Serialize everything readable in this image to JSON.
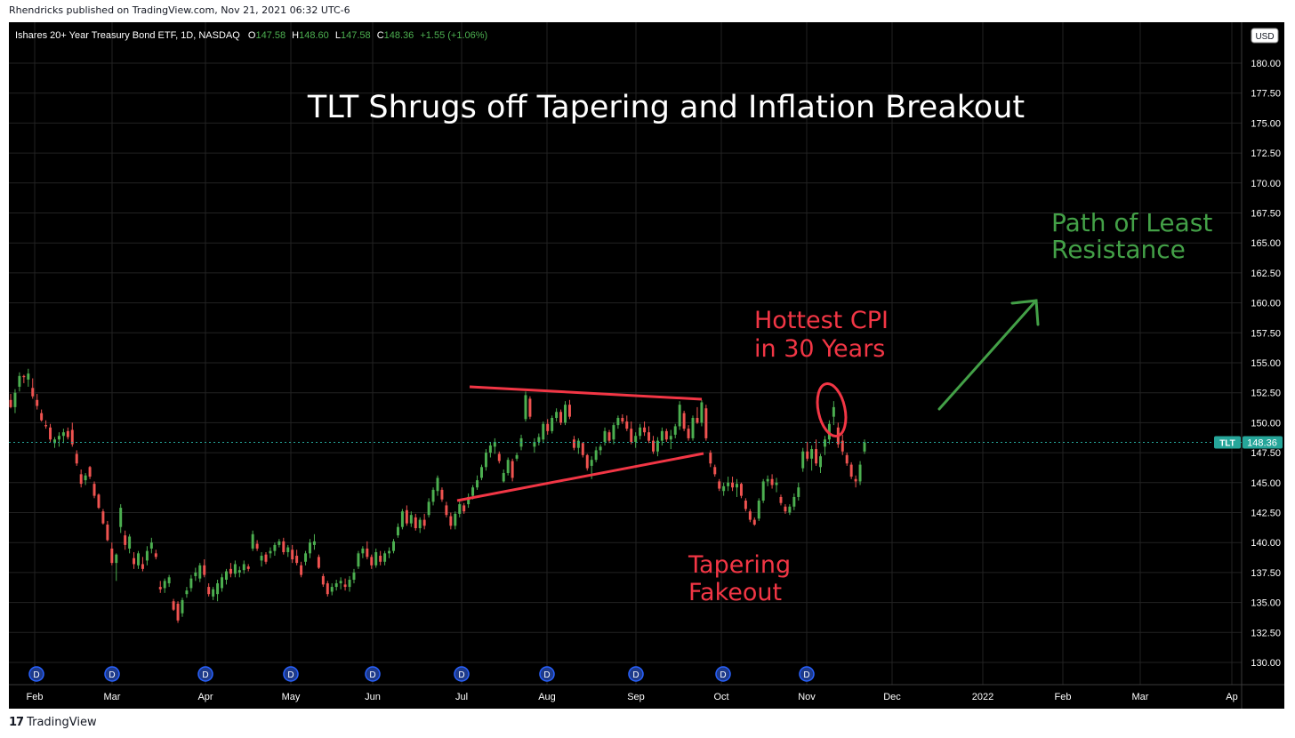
{
  "publish_line": "Rhendricks published on TradingView.com, Nov 21, 2021 06:32 UTC-6",
  "footer": {
    "logo_glyph": "17",
    "brand": "TradingView"
  },
  "colors": {
    "up": "#4caf50",
    "down": "#ef5350",
    "annotation_red": "#f23645",
    "annotation_green": "#43a047",
    "price_tag": "#26a69a"
  },
  "chart_data": {
    "type": "candlestick",
    "title": "TLT Shrugs off Tapering and Inflation Breakout",
    "legend": {
      "symbol": "Ishares 20+ Year Treasury Bond ETF, 1D, NASDAQ",
      "o_label": "O",
      "o_value": "147.58",
      "h_label": "H",
      "h_value": "148.60",
      "l_label": "L",
      "l_value": "147.58",
      "c_label": "C",
      "c_value": "148.36",
      "change": "+1.55 (+1.06%)"
    },
    "currency": "USD",
    "ylim": [
      129,
      182
    ],
    "y_ticks": [
      "180.00",
      "177.50",
      "175.00",
      "172.50",
      "170.00",
      "167.50",
      "165.00",
      "162.50",
      "160.00",
      "157.50",
      "155.00",
      "152.50",
      "150.00",
      "147.50",
      "145.00",
      "142.50",
      "140.00",
      "137.50",
      "135.00",
      "132.50",
      "130.00"
    ],
    "x_ticks": [
      "Feb",
      "Mar",
      "Apr",
      "May",
      "Jun",
      "Jul",
      "Aug",
      "Sep",
      "Oct",
      "Nov",
      "Dec",
      "2022",
      "Feb",
      "Mar",
      "Ap"
    ],
    "dividend_marker": "D",
    "last_price": {
      "symbol": "TLT",
      "value": "148.36",
      "price": 148.36
    },
    "annotations": [
      {
        "text": "Hottest CPI",
        "color": "red"
      },
      {
        "text": "in 30 Years",
        "color": "red"
      },
      {
        "text": "Tapering",
        "color": "red"
      },
      {
        "text": "Fakeout",
        "color": "red"
      },
      {
        "text": "Path of Least",
        "color": "green"
      },
      {
        "text": "Resistance",
        "color": "green"
      }
    ],
    "candles": [
      [
        151.9,
        152.4,
        151.2,
        151.3
      ],
      [
        151.3,
        152.8,
        150.8,
        152.5
      ],
      [
        153.0,
        154.2,
        152.6,
        153.9
      ],
      [
        153.9,
        154.0,
        153.3,
        153.8
      ],
      [
        153.6,
        154.5,
        153.0,
        154.1
      ],
      [
        152.9,
        153.7,
        152.0,
        152.2
      ],
      [
        151.9,
        152.4,
        151.1,
        151.4
      ],
      [
        150.8,
        151.1,
        150.1,
        150.2
      ],
      [
        149.8,
        150.2,
        149.5,
        149.7
      ],
      [
        149.6,
        149.9,
        148.4,
        148.6
      ],
      [
        148.3,
        148.8,
        147.9,
        148.6
      ],
      [
        148.6,
        149.2,
        148.0,
        148.9
      ],
      [
        148.9,
        149.5,
        148.3,
        149.2
      ],
      [
        149.3,
        149.6,
        148.6,
        148.8
      ],
      [
        149.4,
        150.0,
        148.0,
        148.2
      ],
      [
        147.4,
        147.7,
        146.4,
        146.6
      ],
      [
        145.7,
        146.1,
        144.6,
        144.9
      ],
      [
        145.2,
        145.8,
        144.8,
        145.6
      ],
      [
        146.3,
        146.4,
        145.3,
        145.5
      ],
      [
        144.9,
        145.1,
        143.7,
        143.9
      ],
      [
        144.0,
        144.1,
        142.8,
        142.9
      ],
      [
        142.6,
        142.8,
        141.5,
        141.6
      ],
      [
        141.5,
        141.8,
        140.1,
        140.2
      ],
      [
        139.5,
        140.0,
        138.1,
        138.3
      ],
      [
        138.3,
        139.1,
        136.8,
        139.0
      ],
      [
        141.3,
        143.2,
        140.8,
        142.9
      ],
      [
        140.6,
        141.0,
        139.4,
        139.8
      ],
      [
        139.5,
        140.7,
        139.1,
        140.5
      ],
      [
        138.7,
        139.2,
        137.8,
        138.2
      ],
      [
        138.1,
        139.3,
        137.8,
        139.1
      ],
      [
        138.2,
        138.8,
        137.6,
        137.8
      ],
      [
        138.5,
        139.7,
        138.1,
        139.3
      ],
      [
        139.5,
        140.4,
        139.1,
        140.0
      ],
      [
        139.1,
        139.4,
        138.6,
        138.8
      ],
      [
        136.3,
        136.8,
        135.8,
        136.1
      ],
      [
        136.2,
        137.0,
        135.8,
        136.8
      ],
      [
        136.6,
        137.3,
        136.3,
        137.1
      ],
      [
        135.1,
        135.3,
        134.3,
        134.4
      ],
      [
        134.9,
        135.1,
        133.3,
        133.5
      ],
      [
        134.1,
        135.4,
        133.8,
        135.2
      ],
      [
        135.7,
        136.3,
        135.4,
        136.0
      ],
      [
        136.2,
        137.3,
        135.9,
        137.0
      ],
      [
        137.2,
        137.9,
        136.8,
        137.5
      ],
      [
        137.0,
        138.3,
        136.7,
        138.1
      ],
      [
        138.1,
        138.6,
        137.1,
        137.3
      ],
      [
        136.3,
        136.6,
        135.5,
        135.7
      ],
      [
        135.5,
        136.3,
        135.2,
        136.1
      ],
      [
        135.7,
        136.9,
        135.1,
        136.6
      ],
      [
        136.2,
        137.4,
        135.9,
        137.1
      ],
      [
        136.9,
        137.8,
        136.5,
        137.6
      ],
      [
        137.8,
        138.3,
        137.1,
        137.4
      ],
      [
        137.4,
        138.5,
        137.1,
        138.2
      ],
      [
        137.5,
        138.0,
        137.1,
        137.7
      ],
      [
        137.7,
        138.5,
        137.4,
        138.2
      ],
      [
        138.0,
        138.2,
        137.6,
        137.8
      ],
      [
        139.5,
        141.0,
        139.3,
        140.7
      ],
      [
        139.9,
        140.2,
        139.3,
        139.5
      ],
      [
        138.5,
        139.2,
        138.0,
        138.9
      ],
      [
        139.0,
        139.2,
        138.2,
        138.4
      ],
      [
        139.1,
        139.6,
        138.7,
        139.3
      ],
      [
        139.3,
        140.0,
        138.9,
        139.8
      ],
      [
        139.8,
        140.3,
        139.6,
        140.1
      ],
      [
        140.1,
        140.4,
        139.0,
        139.2
      ],
      [
        139.2,
        139.8,
        138.8,
        139.6
      ],
      [
        139.4,
        139.8,
        138.3,
        138.6
      ],
      [
        138.9,
        139.4,
        138.1,
        138.3
      ],
      [
        138.1,
        138.4,
        137.1,
        137.3
      ],
      [
        138.4,
        139.3,
        138.1,
        139.1
      ],
      [
        139.1,
        140.3,
        138.7,
        140.0
      ],
      [
        139.8,
        140.7,
        139.4,
        140.1
      ],
      [
        138.8,
        139.0,
        137.8,
        137.9
      ],
      [
        137.2,
        137.4,
        136.3,
        136.5
      ],
      [
        136.6,
        136.8,
        135.5,
        135.7
      ],
      [
        135.9,
        136.6,
        135.6,
        136.3
      ],
      [
        136.3,
        136.9,
        136.0,
        136.6
      ],
      [
        136.6,
        137.1,
        136.1,
        136.8
      ],
      [
        136.5,
        137.0,
        136.0,
        136.3
      ],
      [
        136.3,
        137.2,
        135.9,
        136.9
      ],
      [
        136.9,
        137.8,
        136.6,
        137.5
      ],
      [
        138.0,
        139.3,
        137.8,
        139.1
      ],
      [
        139.1,
        139.7,
        138.7,
        139.5
      ],
      [
        139.5,
        140.1,
        138.6,
        138.8
      ],
      [
        138.8,
        139.0,
        137.8,
        138.1
      ],
      [
        138.1,
        139.5,
        137.9,
        139.2
      ],
      [
        138.9,
        139.3,
        138.1,
        138.4
      ],
      [
        138.4,
        139.3,
        138.1,
        139.1
      ],
      [
        139.1,
        139.6,
        138.7,
        139.3
      ],
      [
        139.3,
        140.3,
        139.1,
        140.1
      ],
      [
        140.6,
        141.6,
        140.4,
        141.3
      ],
      [
        141.3,
        142.8,
        141.1,
        142.6
      ],
      [
        142.7,
        143.1,
        141.4,
        141.6
      ],
      [
        141.6,
        142.6,
        141.3,
        142.3
      ],
      [
        142.1,
        142.4,
        141.0,
        141.2
      ],
      [
        141.2,
        142.1,
        140.8,
        141.9
      ],
      [
        141.9,
        142.4,
        141.1,
        141.4
      ],
      [
        142.3,
        143.7,
        142.1,
        143.4
      ],
      [
        143.4,
        144.6,
        143.1,
        144.4
      ],
      [
        144.3,
        145.6,
        143.9,
        145.4
      ],
      [
        144.4,
        144.6,
        143.4,
        143.6
      ],
      [
        143.1,
        143.4,
        142.1,
        142.3
      ],
      [
        142.2,
        142.5,
        141.1,
        141.4
      ],
      [
        141.4,
        142.6,
        141.1,
        142.4
      ],
      [
        142.4,
        143.5,
        142.1,
        143.2
      ],
      [
        143.1,
        143.3,
        142.4,
        142.6
      ],
      [
        143.2,
        144.1,
        142.9,
        143.8
      ],
      [
        143.9,
        144.8,
        143.6,
        144.6
      ],
      [
        144.6,
        145.6,
        144.4,
        145.2
      ],
      [
        145.4,
        146.5,
        145.2,
        146.3
      ],
      [
        146.3,
        147.8,
        146.0,
        147.5
      ],
      [
        147.5,
        148.4,
        147.1,
        148.1
      ],
      [
        148.0,
        148.7,
        147.4,
        148.4
      ],
      [
        147.4,
        147.6,
        146.6,
        146.8
      ],
      [
        145.1,
        146.1,
        145.0,
        145.8
      ],
      [
        145.8,
        147.1,
        145.6,
        146.9
      ],
      [
        146.8,
        147.0,
        145.1,
        145.4
      ],
      [
        147.0,
        147.5,
        146.8,
        147.3
      ],
      [
        148.0,
        149.0,
        147.7,
        148.7
      ],
      [
        150.3,
        152.6,
        150.1,
        152.3
      ],
      [
        152.0,
        152.2,
        150.3,
        150.5
      ],
      [
        148.0,
        148.7,
        147.5,
        148.4
      ],
      [
        148.4,
        149.1,
        148.1,
        148.8
      ],
      [
        148.6,
        150.1,
        148.3,
        149.9
      ],
      [
        149.9,
        150.3,
        149.0,
        149.3
      ],
      [
        149.3,
        150.6,
        149.1,
        150.4
      ],
      [
        150.4,
        151.2,
        150.1,
        150.9
      ],
      [
        150.9,
        151.1,
        149.8,
        150.0
      ],
      [
        150.0,
        151.8,
        149.8,
        151.5
      ],
      [
        151.5,
        151.9,
        150.3,
        150.5
      ],
      [
        148.6,
        148.9,
        147.7,
        147.9
      ],
      [
        147.9,
        148.7,
        147.4,
        148.5
      ],
      [
        148.3,
        148.4,
        147.1,
        147.3
      ],
      [
        147.3,
        147.4,
        146.0,
        146.2
      ],
      [
        146.4,
        147.2,
        145.3,
        146.9
      ],
      [
        146.9,
        148.0,
        146.7,
        147.7
      ],
      [
        147.7,
        148.2,
        147.3,
        148.0
      ],
      [
        148.4,
        149.6,
        148.1,
        149.3
      ],
      [
        149.2,
        149.4,
        148.3,
        148.5
      ],
      [
        148.6,
        150.0,
        148.2,
        149.8
      ],
      [
        149.8,
        150.6,
        149.5,
        150.4
      ],
      [
        150.4,
        150.7,
        149.9,
        150.1
      ],
      [
        150.1,
        150.6,
        149.3,
        149.5
      ],
      [
        149.5,
        150.1,
        148.2,
        148.4
      ],
      [
        148.4,
        149.2,
        147.9,
        148.9
      ],
      [
        148.9,
        149.9,
        148.6,
        149.6
      ],
      [
        149.6,
        150.1,
        148.9,
        149.2
      ],
      [
        149.2,
        149.7,
        148.3,
        148.5
      ],
      [
        148.5,
        148.9,
        147.4,
        147.6
      ],
      [
        147.6,
        148.8,
        147.2,
        148.5
      ],
      [
        148.5,
        149.6,
        148.1,
        149.3
      ],
      [
        149.3,
        149.5,
        148.4,
        148.6
      ],
      [
        148.6,
        149.4,
        147.8,
        148.9
      ],
      [
        149.0,
        149.9,
        148.7,
        149.7
      ],
      [
        149.7,
        151.8,
        149.4,
        151.5
      ],
      [
        150.8,
        151.0,
        149.3,
        149.5
      ],
      [
        149.5,
        149.8,
        148.5,
        148.7
      ],
      [
        148.7,
        150.6,
        148.5,
        150.4
      ],
      [
        150.4,
        151.3,
        149.9,
        150.0
      ],
      [
        150.0,
        151.9,
        149.7,
        151.7
      ],
      [
        151.2,
        151.5,
        148.5,
        148.7
      ],
      [
        147.5,
        147.7,
        146.3,
        146.6
      ],
      [
        146.3,
        146.5,
        145.5,
        145.7
      ],
      [
        145.1,
        145.3,
        144.3,
        144.5
      ],
      [
        144.3,
        145.0,
        143.9,
        144.7
      ],
      [
        144.7,
        145.5,
        144.3,
        145.0
      ],
      [
        145.0,
        145.5,
        144.3,
        144.6
      ],
      [
        144.6,
        145.3,
        143.8,
        144.9
      ],
      [
        144.9,
        145.0,
        143.7,
        143.9
      ],
      [
        143.5,
        143.7,
        142.6,
        142.8
      ],
      [
        142.6,
        142.8,
        141.7,
        141.9
      ],
      [
        141.9,
        142.1,
        141.4,
        141.5
      ],
      [
        142.0,
        143.7,
        141.8,
        143.5
      ],
      [
        143.5,
        145.3,
        143.3,
        145.1
      ],
      [
        145.1,
        145.6,
        144.7,
        145.3
      ],
      [
        145.3,
        145.7,
        144.5,
        144.8
      ],
      [
        144.8,
        145.4,
        144.2,
        145.0
      ],
      [
        143.8,
        144.0,
        143.1,
        143.3
      ],
      [
        143.0,
        143.2,
        142.4,
        142.6
      ],
      [
        142.5,
        143.2,
        142.3,
        143.0
      ],
      [
        143.0,
        144.1,
        142.7,
        143.8
      ],
      [
        143.8,
        145.0,
        143.5,
        144.6
      ],
      [
        146.2,
        147.9,
        145.9,
        147.6
      ],
      [
        147.6,
        148.4,
        146.8,
        147.0
      ],
      [
        147.0,
        148.1,
        146.0,
        147.8
      ],
      [
        147.8,
        148.6,
        146.4,
        146.6
      ],
      [
        146.3,
        147.4,
        145.8,
        147.2
      ],
      [
        148.0,
        148.9,
        147.3,
        148.6
      ],
      [
        148.6,
        150.2,
        148.2,
        149.9
      ],
      [
        150.5,
        151.8,
        149.8,
        151.3
      ],
      [
        149.6,
        150.0,
        147.9,
        148.2
      ],
      [
        148.5,
        149.0,
        147.3,
        147.6
      ],
      [
        147.3,
        147.5,
        146.4,
        146.6
      ],
      [
        146.5,
        146.7,
        145.3,
        145.5
      ],
      [
        145.3,
        145.6,
        144.6,
        145.1
      ],
      [
        145.1,
        146.8,
        144.8,
        146.5
      ],
      [
        147.6,
        148.6,
        147.4,
        148.36
      ]
    ]
  }
}
